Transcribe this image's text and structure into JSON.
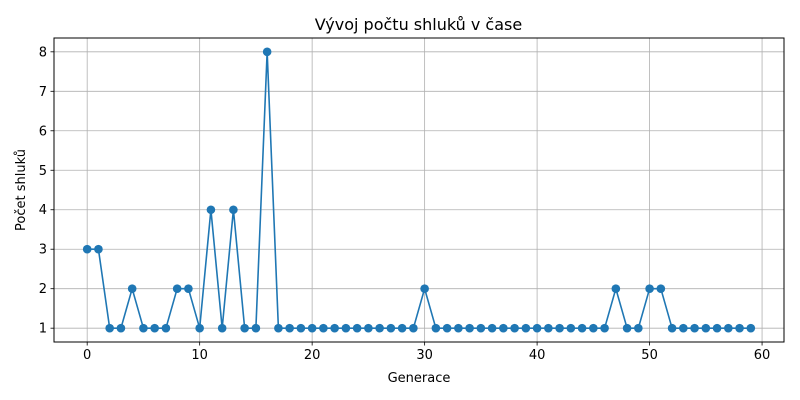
{
  "chart_data": {
    "type": "line",
    "title": "Vývoj počtu shluků v čase",
    "xlabel": "Generace",
    "ylabel": "Počet shluků",
    "xlim": [
      -2.95,
      61.95
    ],
    "ylim": [
      0.65,
      8.35
    ],
    "xticks": [
      0,
      10,
      20,
      30,
      40,
      50,
      60
    ],
    "yticks": [
      1,
      2,
      3,
      4,
      5,
      6,
      7,
      8
    ],
    "grid": true,
    "marker": "circle",
    "color": "#1f77b4",
    "x": [
      0,
      1,
      2,
      3,
      4,
      5,
      6,
      7,
      8,
      9,
      10,
      11,
      12,
      13,
      14,
      15,
      16,
      17,
      18,
      19,
      20,
      21,
      22,
      23,
      24,
      25,
      26,
      27,
      28,
      29,
      30,
      31,
      32,
      33,
      34,
      35,
      36,
      37,
      38,
      39,
      40,
      41,
      42,
      43,
      44,
      45,
      46,
      47,
      48,
      49,
      50,
      51,
      52,
      53,
      54,
      55,
      56,
      57,
      58,
      59
    ],
    "y": [
      3,
      3,
      1,
      1,
      2,
      1,
      1,
      1,
      2,
      2,
      1,
      4,
      1,
      4,
      1,
      1,
      8,
      1,
      1,
      1,
      1,
      1,
      1,
      1,
      1,
      1,
      1,
      1,
      1,
      1,
      2,
      1,
      1,
      1,
      1,
      1,
      1,
      1,
      1,
      1,
      1,
      1,
      1,
      1,
      1,
      1,
      1,
      2,
      1,
      1,
      2,
      2,
      1,
      1,
      1,
      1,
      1,
      1,
      1,
      1
    ]
  }
}
